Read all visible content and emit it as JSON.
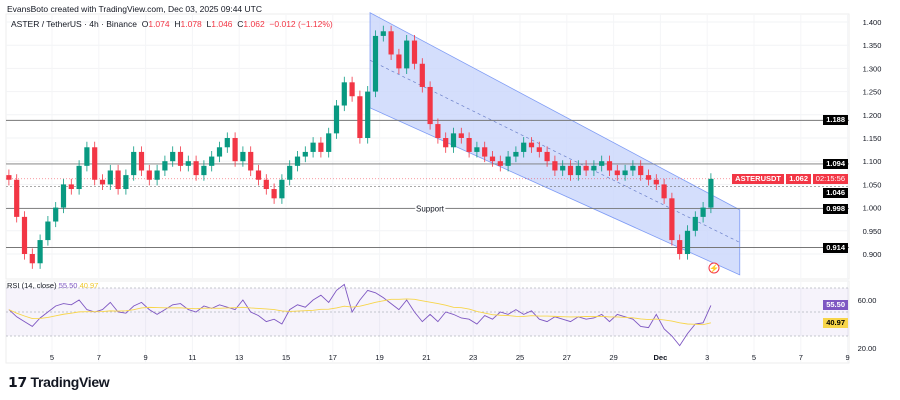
{
  "credit": "EvansBoto created with TradingView.com, Dec 03, 2025 09:44 UTC",
  "legend": {
    "symbol": "ASTER / TetherUS · 4h · Binance",
    "o_label": "O",
    "o": "1.074",
    "h_label": "H",
    "h": "1.078",
    "l_label": "L",
    "l": "1.046",
    "c_label": "C",
    "c": "1.062",
    "change": "−0.012 (−1.12%)"
  },
  "price_axis": {
    "ticks": [
      "1.400",
      "1.350",
      "1.300",
      "1.250",
      "1.200",
      "1.150",
      "1.100",
      "1.050",
      "1.000",
      "0.950",
      "0.900"
    ],
    "min": 0.9,
    "max": 1.4
  },
  "levels": [
    {
      "value": 1.188,
      "label": "1.188"
    },
    {
      "value": 1.094,
      "label": "1.094"
    },
    {
      "value": 0.998,
      "label": "0.998"
    },
    {
      "value": 0.914,
      "label": "0.914"
    }
  ],
  "support_label": "Support",
  "last_price": {
    "symbol": "ASTERUSDT",
    "price": "1.062",
    "countdown": "02:15:56",
    "value": 1.062
  },
  "prev_close": {
    "label": "1.046",
    "value": 1.046
  },
  "channel": {
    "start_day": 15.6,
    "end_day": 31.4,
    "upper": [
      1.42,
      0.995
    ],
    "lower": [
      1.215,
      0.855
    ]
  },
  "time_axis": {
    "labels": [
      "5",
      "7",
      "9",
      "11",
      "13",
      "15",
      "17",
      "19",
      "21",
      "23",
      "25",
      "27",
      "29",
      "Dec",
      "3",
      "5",
      "7",
      "9"
    ]
  },
  "candle_interval": "8h",
  "closes": [
    1.06,
    0.98,
    0.9,
    0.88,
    0.93,
    0.97,
    1.0,
    1.05,
    1.04,
    1.09,
    1.13,
    1.06,
    1.05,
    1.08,
    1.04,
    1.07,
    1.12,
    1.08,
    1.06,
    1.08,
    1.1,
    1.12,
    1.09,
    1.1,
    1.07,
    1.09,
    1.11,
    1.13,
    1.15,
    1.1,
    1.12,
    1.08,
    1.06,
    1.04,
    1.02,
    1.06,
    1.09,
    1.11,
    1.12,
    1.14,
    1.12,
    1.16,
    1.22,
    1.27,
    1.24,
    1.15,
    1.25,
    1.37,
    1.38,
    1.33,
    1.3,
    1.36,
    1.31,
    1.26,
    1.18,
    1.15,
    1.13,
    1.16,
    1.15,
    1.12,
    1.13,
    1.11,
    1.1,
    1.09,
    1.11,
    1.12,
    1.14,
    1.13,
    1.12,
    1.1,
    1.08,
    1.09,
    1.07,
    1.09,
    1.08,
    1.09,
    1.1,
    1.08,
    1.07,
    1.08,
    1.09,
    1.07,
    1.06,
    1.05,
    1.02,
    0.93,
    0.9,
    0.95,
    0.98,
    1.0,
    1.062
  ],
  "first_open": 1.07,
  "rsi": {
    "label": "RSI (14, close)",
    "value": "55.50",
    "ma": "40.97",
    "upper_band": 70,
    "lower_band": 30,
    "ticks": [
      "60.00",
      "20.00"
    ],
    "values": [
      52,
      46,
      42,
      38,
      45,
      50,
      55,
      57,
      56,
      60,
      52,
      50,
      52,
      58,
      50,
      49,
      55,
      58,
      52,
      48,
      52,
      56,
      57,
      52,
      50,
      55,
      53,
      56,
      54,
      52,
      60,
      50,
      47,
      42,
      44,
      40,
      52,
      56,
      54,
      60,
      64,
      58,
      68,
      73,
      50,
      60,
      68,
      66,
      62,
      57,
      52,
      60,
      50,
      42,
      48,
      42,
      50,
      48,
      45,
      44,
      40,
      47,
      44,
      50,
      48,
      52,
      48,
      51,
      44,
      42,
      46,
      44,
      42,
      46,
      44,
      45,
      48,
      42,
      48,
      46,
      44,
      38,
      37,
      48,
      36,
      30,
      22,
      32,
      40,
      41,
      55.5
    ]
  },
  "brand": "TradingView",
  "colors": {
    "up": "#089981",
    "down": "#f23645",
    "channel": "#c9d6fb",
    "rsi": "#7e57c2",
    "rsi_ma": "#f7d54a"
  }
}
